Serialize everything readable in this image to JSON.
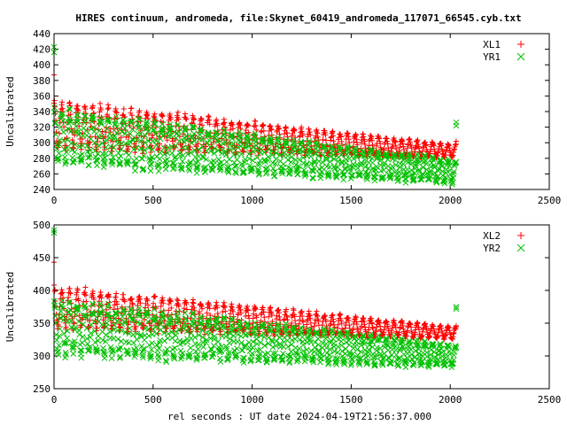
{
  "title": "HIRES continuum, andromeda, file:Skynet_60419_andromeda_117071_66545.cyb.txt",
  "xlabel": "rel seconds : UT date 2024-04-19T21:56:37.000",
  "colors": {
    "red": "#ff0000",
    "green": "#00c000"
  },
  "chart_data": [
    {
      "type": "scatter",
      "ylabel": "Uncalibrated",
      "xlim": [
        0,
        2500
      ],
      "ylim": [
        240,
        440
      ],
      "xticks": [
        0,
        500,
        1000,
        1500,
        2000,
        2500
      ],
      "yticks": [
        240,
        260,
        280,
        300,
        320,
        340,
        360,
        380,
        400,
        420,
        440
      ],
      "legend_position": "top-right",
      "x_span": [
        0,
        2030
      ],
      "series": [
        {
          "name": "XL1",
          "marker": "plus",
          "color": "#ff0000",
          "start_upper": 355,
          "end_upper": 298,
          "start_lower": 290,
          "end_lower": 280,
          "outliers": [
            [
              0,
              387
            ],
            [
              2030,
              302
            ]
          ]
        },
        {
          "name": "YR1",
          "marker": "cross",
          "color": "#00c000",
          "start_upper": 345,
          "end_upper": 278,
          "start_lower": 270,
          "end_lower": 247,
          "outliers": [
            [
              0,
              423
            ],
            [
              0,
              416
            ],
            [
              2030,
              326
            ],
            [
              2030,
              322
            ]
          ]
        }
      ]
    },
    {
      "type": "scatter",
      "ylabel": "Uncalibrated",
      "xlim": [
        0,
        2500
      ],
      "ylim": [
        250,
        500
      ],
      "xticks": [
        0,
        500,
        1000,
        1500,
        2000,
        2500
      ],
      "yticks": [
        250,
        300,
        350,
        400,
        450,
        500
      ],
      "legend_position": "top-right",
      "x_span": [
        0,
        2030
      ],
      "series": [
        {
          "name": "XL2",
          "marker": "plus",
          "color": "#ff0000",
          "start_upper": 408,
          "end_upper": 345,
          "start_lower": 340,
          "end_lower": 325,
          "outliers": [
            [
              0,
              443
            ],
            [
              2030,
              346
            ]
          ]
        },
        {
          "name": "YR2",
          "marker": "cross",
          "color": "#00c000",
          "start_upper": 388,
          "end_upper": 318,
          "start_lower": 298,
          "end_lower": 282,
          "outliers": [
            [
              0,
              492
            ],
            [
              0,
              488
            ],
            [
              2030,
              375
            ],
            [
              2030,
              372
            ]
          ]
        }
      ]
    }
  ]
}
